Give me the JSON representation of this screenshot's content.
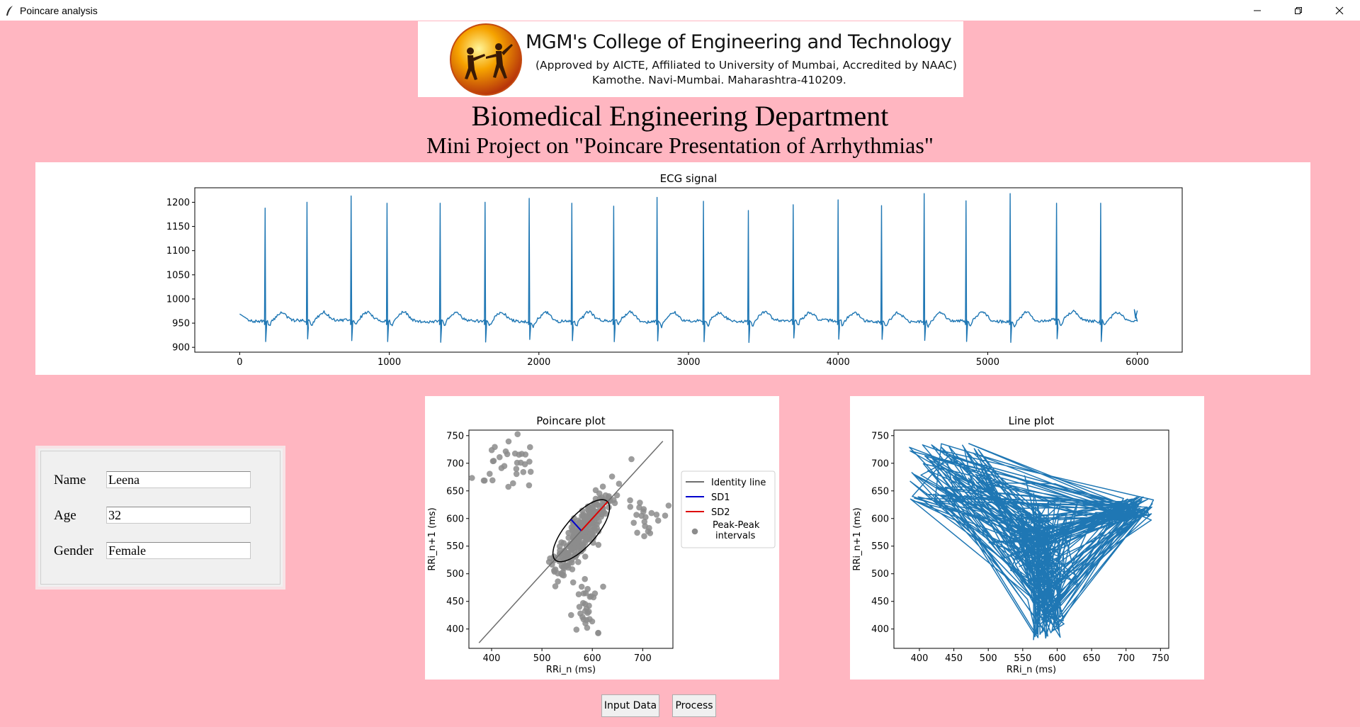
{
  "window": {
    "title": "Poincare analysis",
    "controls": [
      "minimize-icon",
      "restore-icon",
      "close-icon"
    ]
  },
  "banner": {
    "college": "MGM's College of Engineering and Technology",
    "approval": "(Approved by AICTE, Affiliated to University of Mumbai, Accredited by NAAC)",
    "address": "Kamothe. Navi-Mumbai. Maharashtra-410209."
  },
  "header": {
    "department": "Biomedical Engineering Department",
    "project": "Mini Project on \"Poincare Presentation of Arrhythmias\""
  },
  "form": {
    "name_label": "Name",
    "name_value": "Leena",
    "age_label": "Age",
    "age_value": "32",
    "gender_label": "Gender",
    "gender_value": "Female"
  },
  "buttons": {
    "input_data": "Input Data",
    "process": "Process"
  },
  "chart_data": [
    {
      "type": "line",
      "title": "ECG signal",
      "xlabel": "",
      "ylabel": "",
      "xlim": [
        -300,
        6300
      ],
      "ylim": [
        890,
        1230
      ],
      "xticks": [
        0,
        1000,
        2000,
        3000,
        4000,
        5000,
        6000
      ],
      "yticks": [
        900,
        950,
        1000,
        1050,
        1100,
        1150,
        1200
      ],
      "baseline": 955,
      "r_peaks": [
        {
          "x": 170,
          "y": 1188
        },
        {
          "x": 450,
          "y": 1200
        },
        {
          "x": 745,
          "y": 1213
        },
        {
          "x": 985,
          "y": 1198
        },
        {
          "x": 1340,
          "y": 1198
        },
        {
          "x": 1640,
          "y": 1200
        },
        {
          "x": 1935,
          "y": 1208
        },
        {
          "x": 2220,
          "y": 1198
        },
        {
          "x": 2500,
          "y": 1192
        },
        {
          "x": 2790,
          "y": 1210
        },
        {
          "x": 3100,
          "y": 1202
        },
        {
          "x": 3400,
          "y": 1183
        },
        {
          "x": 3700,
          "y": 1195
        },
        {
          "x": 4000,
          "y": 1205
        },
        {
          "x": 4290,
          "y": 1193
        },
        {
          "x": 4575,
          "y": 1218
        },
        {
          "x": 4855,
          "y": 1203
        },
        {
          "x": 5150,
          "y": 1218
        },
        {
          "x": 5460,
          "y": 1198
        },
        {
          "x": 5755,
          "y": 1198
        }
      ],
      "end_x": 6000,
      "color": "#1f77b4"
    },
    {
      "type": "scatter",
      "title": "Poincare plot",
      "xlabel": "RRi_n (ms)",
      "ylabel": "RRi_n+1 (ms)",
      "xlim": [
        355,
        760
      ],
      "ylim": [
        365,
        760
      ],
      "xticks": [
        400,
        500,
        600,
        700
      ],
      "yticks": [
        400,
        450,
        500,
        550,
        600,
        650,
        700,
        750
      ],
      "identity_line": {
        "from": [
          375,
          375
        ],
        "to": [
          740,
          740
        ],
        "color": "#6e6e6e"
      },
      "ellipse": {
        "center": [
          578,
          578
        ],
        "sd1": 29,
        "sd2": 74,
        "color": "#000000"
      },
      "sd1_color": "#0000cc",
      "sd2_color": "#dd0000",
      "point_color": "#8c8c8c",
      "clusters": [
        {
          "cx": 580,
          "cy": 575,
          "sx": 28,
          "sy": 38,
          "rho": 0.82,
          "n": 260
        },
        {
          "cx": 440,
          "cy": 695,
          "sx": 30,
          "sy": 25,
          "rho": 0.0,
          "n": 32
        },
        {
          "cx": 705,
          "cy": 600,
          "sx": 22,
          "sy": 25,
          "rho": 0.0,
          "n": 22
        },
        {
          "cx": 590,
          "cy": 435,
          "sx": 15,
          "sy": 30,
          "rho": 0.0,
          "n": 32
        }
      ],
      "legend": {
        "placement": "outside-right",
        "entries": [
          {
            "label": "Identity line",
            "kind": "line",
            "color": "#6e6e6e"
          },
          {
            "label": "SD1",
            "kind": "line",
            "color": "#0000cc"
          },
          {
            "label": "SD2",
            "kind": "line",
            "color": "#dd0000"
          },
          {
            "label": "Peak-Peak",
            "label2": "intervals",
            "kind": "point",
            "color": "#8c8c8c"
          }
        ]
      }
    },
    {
      "type": "line",
      "title": "Line plot",
      "xlabel": "RRi_n (ms)",
      "ylabel": "RRi_n+1 (ms)",
      "xlim": [
        363,
        762
      ],
      "ylim": [
        365,
        760
      ],
      "xticks": [
        400,
        450,
        500,
        550,
        600,
        650,
        700,
        750
      ],
      "yticks": [
        400,
        450,
        500,
        550,
        600,
        650,
        700,
        750
      ],
      "n_segments": 380,
      "color": "#1f77b4"
    }
  ]
}
